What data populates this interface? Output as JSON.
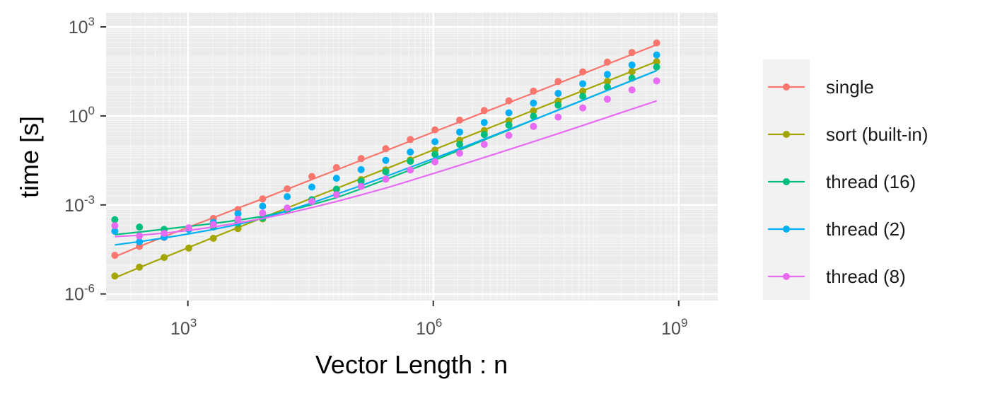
{
  "chart_data": {
    "type": "scatter",
    "xlabel": "Vector Length : n",
    "ylabel": "time [s]",
    "x_scale": "log10",
    "y_scale": "log10",
    "xlim": [
      100,
      3000000000
    ],
    "ylim": [
      6e-07,
      3000
    ],
    "grid": true,
    "legend_position": "right",
    "x_ticks": [
      {
        "value": 1000,
        "base": "10",
        "exp": "3"
      },
      {
        "value": 1000000,
        "base": "10",
        "exp": "6"
      },
      {
        "value": 1000000000,
        "base": "10",
        "exp": "9"
      }
    ],
    "y_ticks": [
      {
        "value": 1000,
        "base": "10",
        "exp": "3"
      },
      {
        "value": 1,
        "base": "10",
        "exp": "0"
      },
      {
        "value": 0.001,
        "base": "10",
        "exp": "-3"
      },
      {
        "value": 1e-06,
        "base": "10",
        "exp": "-6"
      }
    ],
    "x": [
      128,
      256,
      512,
      1024,
      2048,
      4096,
      8192,
      16384,
      32768,
      65536,
      131072,
      262144,
      524288,
      1048576,
      2097152,
      4194304,
      8388608,
      16777216,
      33554432,
      67108864,
      134217728,
      268435456,
      536870912
    ],
    "series": [
      {
        "name": "single",
        "color": "#F8766D",
        "values": [
          2e-05,
          4e-05,
          8e-05,
          0.00016,
          0.00035,
          0.0007,
          0.0016,
          0.0035,
          0.0091,
          0.0181,
          0.0363,
          0.0784,
          0.1599,
          0.3391,
          0.7182,
          1.5204,
          3.2208,
          6.8231,
          14.445,
          30.596,
          64.767,
          137.01,
          289.54
        ],
        "fit": [
          1.8e-05,
          4e-05,
          8.5e-05,
          0.00018,
          0.00037,
          0.00078,
          0.0016,
          0.0034,
          0.0072,
          0.015,
          0.032,
          0.067,
          0.142,
          0.3,
          0.63,
          1.33,
          2.8,
          5.9,
          12.5,
          26.4,
          56,
          118,
          250
        ]
      },
      {
        "name": "sort (built-in)",
        "color": "#A3A500",
        "values": [
          4e-06,
          8e-06,
          1.7e-05,
          3.5e-05,
          7.5e-05,
          0.00016,
          0.00034,
          0.00072,
          0.0015,
          0.0033,
          0.0071,
          0.0152,
          0.0327,
          0.0701,
          0.1503,
          0.3221,
          0.6907,
          1.4799,
          3.1718,
          6.7967,
          14.564,
          31.206,
          66.865
        ],
        "fit": [
          3.5e-06,
          7.8e-06,
          1.7e-05,
          3.7e-05,
          8e-05,
          0.000172,
          0.00037,
          0.00079,
          0.0017,
          0.0036,
          0.0077,
          0.0164,
          0.035,
          0.075,
          0.16,
          0.34,
          0.72,
          1.54,
          3.3,
          7.0,
          15.0,
          32.0,
          68.0
        ]
      },
      {
        "name": "thread (16)",
        "color": "#00BF7D",
        "values": [
          0.00032,
          0.00018,
          0.00015,
          0.00015,
          0.00018,
          0.00024,
          0.00036,
          0.00064,
          0.0015,
          0.0034,
          0.0063,
          0.0131,
          0.0295,
          0.0508,
          0.1103,
          0.2359,
          0.4911,
          0.9711,
          2.3012,
          4.6028,
          9.4162,
          18.731,
          44.238
        ],
        "fit": [
          0.0001,
          0.000122,
          0.000152,
          0.000189,
          0.000238,
          0.000306,
          0.00041,
          0.00062,
          0.00102,
          0.00176,
          0.0035,
          0.0072,
          0.0152,
          0.0326,
          0.0706,
          0.155,
          0.335,
          0.73,
          1.57,
          3.4,
          7.3,
          15.6,
          33.5
        ]
      },
      {
        "name": "thread (2)",
        "color": "#00B0F6",
        "values": [
          0.00013,
          5.7e-05,
          8.2e-05,
          0.00015,
          0.00026,
          0.00051,
          0.00091,
          0.0019,
          0.004,
          0.0079,
          0.0155,
          0.0319,
          0.0607,
          0.1347,
          0.2861,
          0.5999,
          1.2707,
          2.7049,
          5.7205,
          12.077,
          24.923,
          52.061,
          113.51
        ],
        "fit": [
          4.5e-05,
          5.8e-05,
          7.7e-05,
          0.000106,
          0.00015,
          0.00022,
          0.00036,
          0.00063,
          0.00117,
          0.0023,
          0.0045,
          0.0091,
          0.0186,
          0.038,
          0.079,
          0.165,
          0.35,
          0.74,
          1.57,
          3.35,
          7.2,
          15.5,
          33.5
        ]
      },
      {
        "name": "thread (8)",
        "color": "#E76BF3",
        "values": [
          0.0002,
          9e-05,
          0.00011,
          0.00017,
          0.00022,
          0.00033,
          0.00053,
          0.00079,
          0.0013,
          0.0022,
          0.0042,
          0.0074,
          0.015,
          0.0282,
          0.0551,
          0.1103,
          0.2202,
          0.4409,
          0.9093,
          1.8627,
          3.6701,
          7.5193,
          15.107
        ],
        "fit": [
          8.5e-05,
          9.5e-05,
          0.000112,
          0.000138,
          0.000181,
          0.000247,
          0.00035,
          0.00052,
          0.00081,
          0.00131,
          0.00218,
          0.0037,
          0.0066,
          0.0119,
          0.0217,
          0.0398,
          0.073,
          0.136,
          0.254,
          0.476,
          0.9,
          1.7,
          3.2
        ]
      }
    ]
  }
}
